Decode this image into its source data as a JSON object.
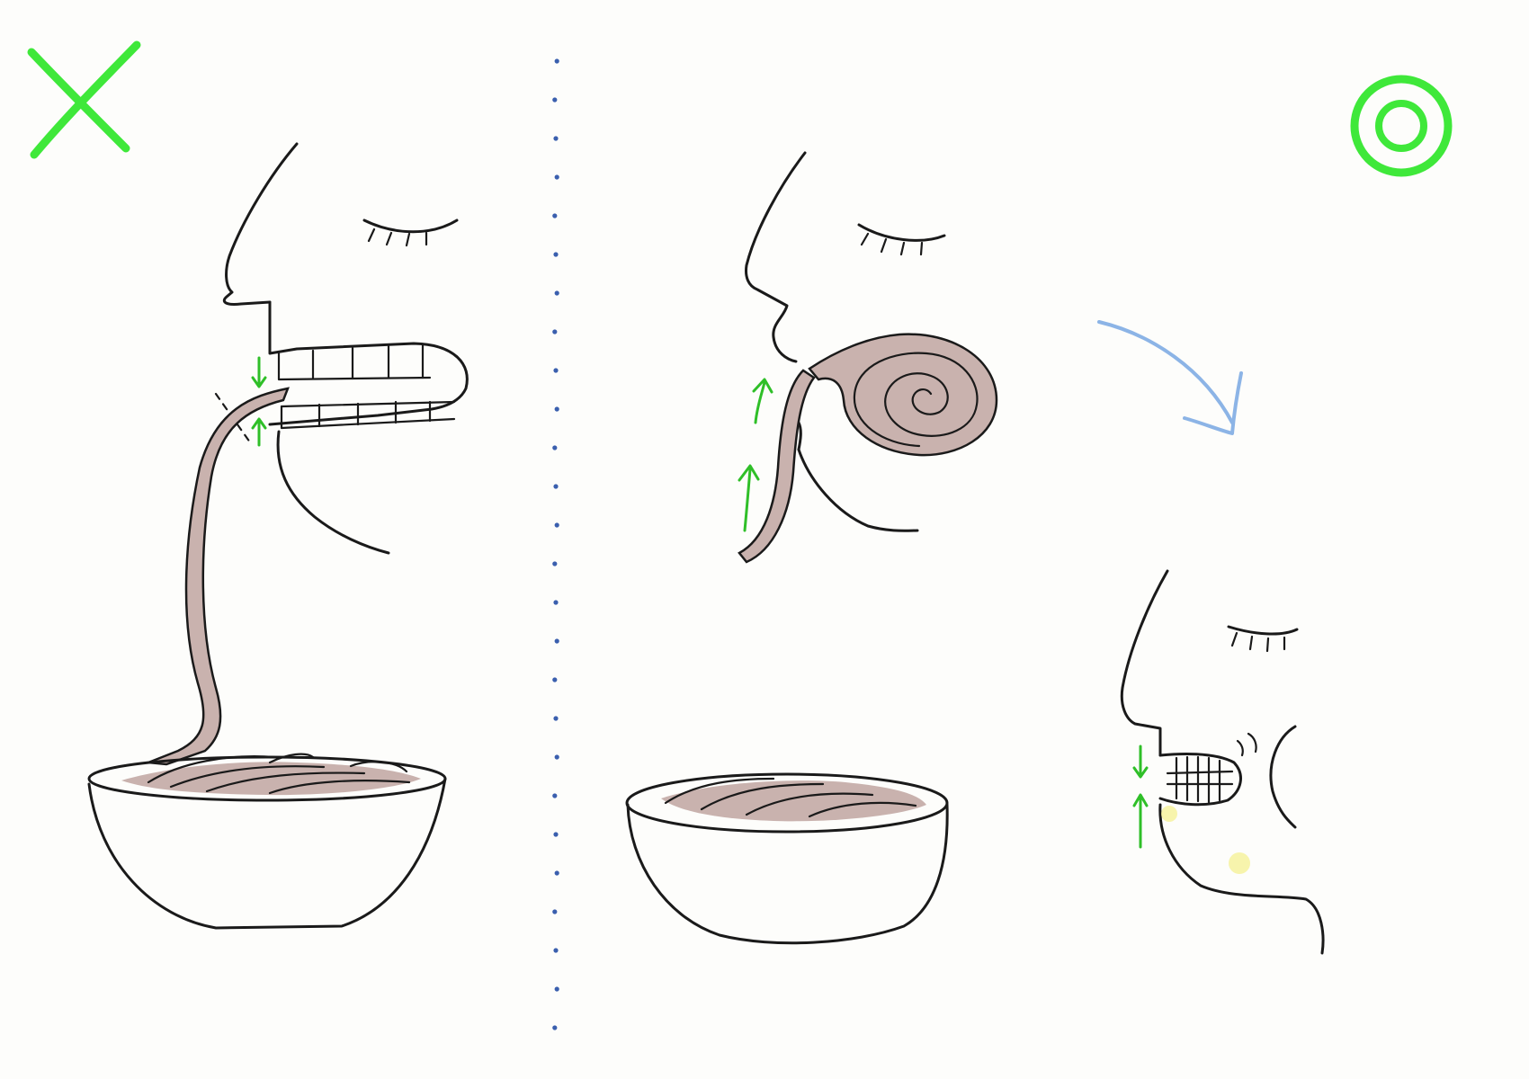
{
  "colors": {
    "background": "#fdfdfb",
    "ink": "#1a1a1a",
    "wrong_mark": "#3fe83a",
    "right_mark": "#3fe83a",
    "right_mark_outer_tint": "#7fe0d8",
    "bite_arrows": "#2fbf28",
    "motion_arrow": "#8cb4e6",
    "divider": "#3a5fae",
    "noodle_fill": "#c9b2ae",
    "cheek_highlight": "#f3f08a"
  },
  "icons": {
    "wrong": "cross-mark-icon",
    "right": "double-circle-icon",
    "motion": "curved-arrow-icon"
  },
  "panels": [
    {
      "id": "wrong-way",
      "verdict": "wrong"
    },
    {
      "id": "right-way",
      "verdict": "right"
    }
  ]
}
